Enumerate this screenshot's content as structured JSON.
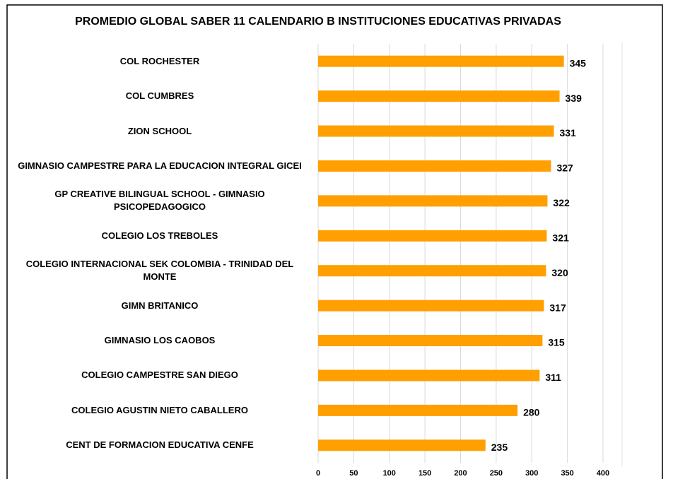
{
  "chart_data": {
    "type": "bar",
    "orientation": "horizontal",
    "title": "PROMEDIO GLOBAL SABER 11 CALENDARIO B INSTITUCIONES EDUCATIVAS PRIVADAS",
    "categories": [
      "COL ROCHESTER",
      "COL CUMBRES",
      "ZION SCHOOL",
      "GIMNASIO CAMPESTRE PARA LA EDUCACION INTEGRAL GICEI",
      "GP CREATIVE BILINGUAL SCHOOL - GIMNASIO PSICOPEDAGOGICO",
      "COLEGIO LOS TREBOLES",
      "COLEGIO INTERNACIONAL SEK COLOMBIA - TRINIDAD DEL MONTE",
      "GIMN BRITANICO",
      "GIMNASIO LOS CAOBOS",
      "COLEGIO CAMPESTRE SAN DIEGO",
      "COLEGIO AGUSTIN NIETO CABALLERO",
      "CENT DE FORMACION EDUCATIVA CENFE"
    ],
    "values": [
      345,
      339,
      331,
      327,
      322,
      321,
      320,
      317,
      315,
      311,
      280,
      235
    ],
    "color": "#ff9f00",
    "xlim": [
      0,
      400
    ],
    "xticks": [
      0,
      50,
      100,
      150,
      200,
      250,
      300,
      350,
      400
    ],
    "grid": true
  }
}
